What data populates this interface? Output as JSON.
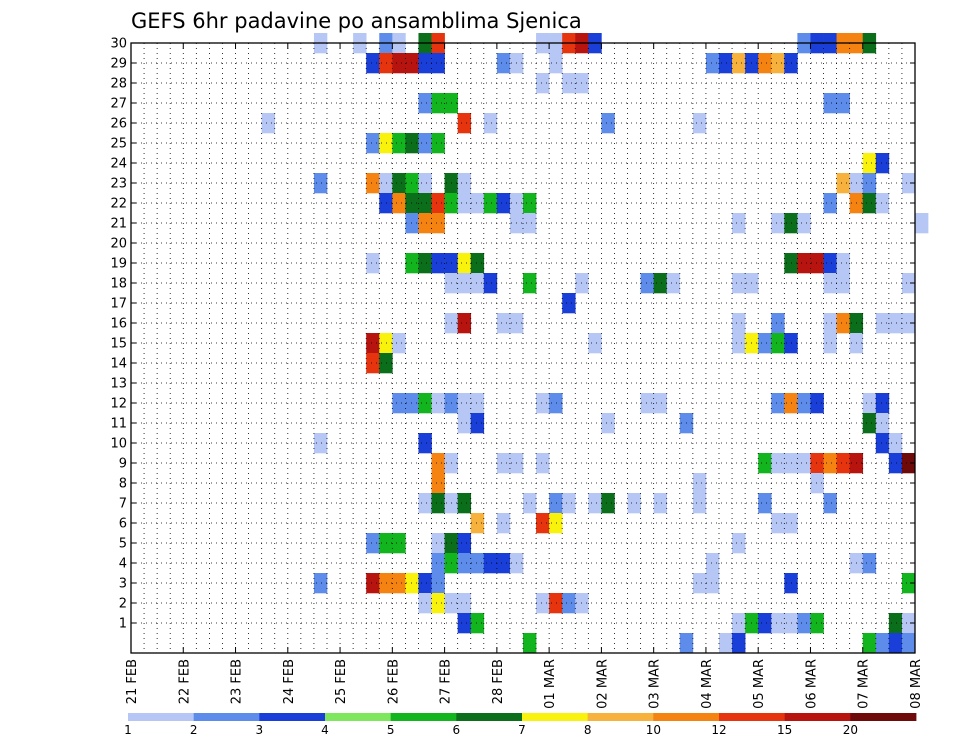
{
  "chart_data": {
    "type": "heatmap",
    "title": "GEFS 6hr padavine po ansamblima Sjenica",
    "xlabel": "",
    "ylabel": "",
    "x_ticks": [
      "21 FEB",
      "22 FEB",
      "23 FEB",
      "24 FEB",
      "25 FEB",
      "26 FEB",
      "27 FEB",
      "28 FEB",
      "01 MAR",
      "02 MAR",
      "03 MAR",
      "04 MAR",
      "05 MAR",
      "06 MAR",
      "07 MAR",
      "08 MAR"
    ],
    "y_ticks": [
      "1",
      "2",
      "3",
      "4",
      "5",
      "6",
      "7",
      "8",
      "9",
      "10",
      "11",
      "12",
      "13",
      "14",
      "15",
      "16",
      "17",
      "18",
      "19",
      "20",
      "21",
      "22",
      "23",
      "24",
      "25",
      "26",
      "27",
      "28",
      "29",
      "30"
    ],
    "steps_per_day": 4,
    "num_steps": 60,
    "legend_levels": [
      "1",
      "2",
      "3",
      "4",
      "5",
      "6",
      "7",
      "8",
      "10",
      "12",
      "15",
      "20"
    ],
    "palette": [
      "#b6c7f5",
      "#5e8ceb",
      "#1a3fd9",
      "#7ee75e",
      "#12b51e",
      "#0a6e1a",
      "#f8f20c",
      "#f6b23c",
      "#f48312",
      "#e6340e",
      "#b8140f",
      "#6e0a0a"
    ],
    "cells": [
      [
        30,
        14,
        0
      ],
      [
        30,
        17,
        0
      ],
      [
        30,
        19,
        1
      ],
      [
        30,
        20,
        0
      ],
      [
        30,
        22,
        5
      ],
      [
        30,
        23,
        9
      ],
      [
        30,
        31,
        0
      ],
      [
        30,
        32,
        0
      ],
      [
        30,
        33,
        9
      ],
      [
        30,
        34,
        10
      ],
      [
        30,
        35,
        2
      ],
      [
        30,
        51,
        1
      ],
      [
        30,
        52,
        2
      ],
      [
        30,
        53,
        2
      ],
      [
        30,
        54,
        8
      ],
      [
        30,
        55,
        8
      ],
      [
        30,
        56,
        5
      ],
      [
        29,
        18,
        2
      ],
      [
        29,
        19,
        9
      ],
      [
        29,
        20,
        10
      ],
      [
        29,
        21,
        10
      ],
      [
        29,
        22,
        2
      ],
      [
        29,
        23,
        2
      ],
      [
        29,
        28,
        1
      ],
      [
        29,
        29,
        0
      ],
      [
        29,
        32,
        0
      ],
      [
        29,
        44,
        1
      ],
      [
        29,
        45,
        2
      ],
      [
        29,
        46,
        7
      ],
      [
        29,
        47,
        2
      ],
      [
        29,
        48,
        8
      ],
      [
        29,
        49,
        7
      ],
      [
        29,
        50,
        2
      ],
      [
        28,
        31,
        0
      ],
      [
        28,
        33,
        0
      ],
      [
        28,
        34,
        0
      ],
      [
        27,
        22,
        1
      ],
      [
        27,
        23,
        4
      ],
      [
        27,
        24,
        4
      ],
      [
        27,
        53,
        1
      ],
      [
        27,
        54,
        1
      ],
      [
        26,
        10,
        0
      ],
      [
        26,
        25,
        9
      ],
      [
        26,
        27,
        0
      ],
      [
        26,
        36,
        1
      ],
      [
        26,
        43,
        0
      ],
      [
        25,
        18,
        1
      ],
      [
        25,
        19,
        6
      ],
      [
        25,
        20,
        4
      ],
      [
        25,
        21,
        5
      ],
      [
        25,
        22,
        1
      ],
      [
        25,
        23,
        4
      ],
      [
        24,
        56,
        6
      ],
      [
        24,
        57,
        2
      ],
      [
        23,
        14,
        1
      ],
      [
        23,
        18,
        8
      ],
      [
        23,
        19,
        0
      ],
      [
        23,
        20,
        5
      ],
      [
        23,
        21,
        4
      ],
      [
        23,
        22,
        0
      ],
      [
        23,
        24,
        5
      ],
      [
        23,
        25,
        0
      ],
      [
        23,
        54,
        7
      ],
      [
        23,
        55,
        0
      ],
      [
        23,
        56,
        1
      ],
      [
        23,
        59,
        0
      ],
      [
        22,
        19,
        2
      ],
      [
        22,
        20,
        8
      ],
      [
        22,
        21,
        5
      ],
      [
        22,
        22,
        5
      ],
      [
        22,
        23,
        9
      ],
      [
        22,
        24,
        4
      ],
      [
        22,
        25,
        0
      ],
      [
        22,
        26,
        0
      ],
      [
        22,
        27,
        4
      ],
      [
        22,
        28,
        2
      ],
      [
        22,
        29,
        0
      ],
      [
        22,
        30,
        4
      ],
      [
        22,
        53,
        1
      ],
      [
        22,
        55,
        8
      ],
      [
        22,
        56,
        5
      ],
      [
        22,
        57,
        0
      ],
      [
        21,
        21,
        1
      ],
      [
        21,
        22,
        8
      ],
      [
        21,
        23,
        8
      ],
      [
        21,
        29,
        0
      ],
      [
        21,
        30,
        0
      ],
      [
        21,
        46,
        0
      ],
      [
        21,
        49,
        0
      ],
      [
        21,
        50,
        5
      ],
      [
        21,
        51,
        0
      ],
      [
        21,
        60,
        0
      ],
      [
        19,
        18,
        0
      ],
      [
        19,
        21,
        4
      ],
      [
        19,
        22,
        5
      ],
      [
        19,
        23,
        2
      ],
      [
        19,
        24,
        2
      ],
      [
        19,
        25,
        6
      ],
      [
        19,
        26,
        5
      ],
      [
        19,
        50,
        5
      ],
      [
        19,
        51,
        10
      ],
      [
        19,
        52,
        10
      ],
      [
        19,
        53,
        2
      ],
      [
        19,
        54,
        0
      ],
      [
        18,
        24,
        0
      ],
      [
        18,
        25,
        0
      ],
      [
        18,
        26,
        0
      ],
      [
        18,
        27,
        2
      ],
      [
        18,
        30,
        4
      ],
      [
        18,
        34,
        0
      ],
      [
        18,
        39,
        1
      ],
      [
        18,
        40,
        5
      ],
      [
        18,
        41,
        0
      ],
      [
        18,
        46,
        0
      ],
      [
        18,
        47,
        0
      ],
      [
        18,
        53,
        0
      ],
      [
        18,
        54,
        0
      ],
      [
        18,
        59,
        0
      ],
      [
        17,
        33,
        2
      ],
      [
        16,
        24,
        0
      ],
      [
        16,
        25,
        10
      ],
      [
        16,
        28,
        0
      ],
      [
        16,
        29,
        0
      ],
      [
        16,
        46,
        0
      ],
      [
        16,
        49,
        1
      ],
      [
        16,
        53,
        0
      ],
      [
        16,
        54,
        8
      ],
      [
        16,
        55,
        5
      ],
      [
        16,
        57,
        0
      ],
      [
        16,
        58,
        0
      ],
      [
        16,
        59,
        0
      ],
      [
        15,
        18,
        10
      ],
      [
        15,
        19,
        6
      ],
      [
        15,
        20,
        0
      ],
      [
        15,
        35,
        0
      ],
      [
        15,
        46,
        0
      ],
      [
        15,
        47,
        6
      ],
      [
        15,
        48,
        1
      ],
      [
        15,
        49,
        4
      ],
      [
        15,
        50,
        2
      ],
      [
        15,
        53,
        0
      ],
      [
        15,
        55,
        0
      ],
      [
        14,
        18,
        9
      ],
      [
        14,
        19,
        5
      ],
      [
        12,
        20,
        1
      ],
      [
        12,
        21,
        1
      ],
      [
        12,
        22,
        4
      ],
      [
        12,
        23,
        0
      ],
      [
        12,
        24,
        1
      ],
      [
        12,
        25,
        0
      ],
      [
        12,
        26,
        0
      ],
      [
        12,
        31,
        0
      ],
      [
        12,
        32,
        1
      ],
      [
        12,
        39,
        0
      ],
      [
        12,
        40,
        0
      ],
      [
        12,
        49,
        1
      ],
      [
        12,
        50,
        8
      ],
      [
        12,
        51,
        1
      ],
      [
        12,
        52,
        2
      ],
      [
        12,
        56,
        0
      ],
      [
        12,
        57,
        2
      ],
      [
        11,
        25,
        0
      ],
      [
        11,
        26,
        2
      ],
      [
        11,
        36,
        0
      ],
      [
        11,
        42,
        1
      ],
      [
        11,
        56,
        5
      ],
      [
        11,
        57,
        0
      ],
      [
        10,
        14,
        0
      ],
      [
        10,
        22,
        2
      ],
      [
        10,
        57,
        2
      ],
      [
        10,
        58,
        0
      ],
      [
        9,
        23,
        8
      ],
      [
        9,
        24,
        0
      ],
      [
        9,
        28,
        0
      ],
      [
        9,
        29,
        0
      ],
      [
        9,
        31,
        0
      ],
      [
        9,
        48,
        4
      ],
      [
        9,
        49,
        0
      ],
      [
        9,
        50,
        0
      ],
      [
        9,
        51,
        0
      ],
      [
        9,
        52,
        9
      ],
      [
        9,
        53,
        8
      ],
      [
        9,
        54,
        9
      ],
      [
        9,
        55,
        10
      ],
      [
        9,
        58,
        2
      ],
      [
        9,
        59,
        11
      ],
      [
        8,
        23,
        8
      ],
      [
        8,
        43,
        0
      ],
      [
        8,
        52,
        0
      ],
      [
        7,
        22,
        0
      ],
      [
        7,
        23,
        5
      ],
      [
        7,
        24,
        0
      ],
      [
        7,
        25,
        5
      ],
      [
        7,
        30,
        0
      ],
      [
        7,
        32,
        1
      ],
      [
        7,
        33,
        0
      ],
      [
        7,
        35,
        0
      ],
      [
        7,
        36,
        5
      ],
      [
        7,
        38,
        0
      ],
      [
        7,
        40,
        0
      ],
      [
        7,
        43,
        0
      ],
      [
        7,
        48,
        1
      ],
      [
        7,
        53,
        1
      ],
      [
        6,
        26,
        7
      ],
      [
        6,
        28,
        0
      ],
      [
        6,
        31,
        9
      ],
      [
        6,
        32,
        6
      ],
      [
        6,
        49,
        0
      ],
      [
        6,
        50,
        0
      ],
      [
        5,
        18,
        1
      ],
      [
        5,
        19,
        4
      ],
      [
        5,
        20,
        4
      ],
      [
        5,
        23,
        0
      ],
      [
        5,
        24,
        5
      ],
      [
        5,
        25,
        2
      ],
      [
        5,
        46,
        0
      ],
      [
        4,
        23,
        1
      ],
      [
        4,
        24,
        4
      ],
      [
        4,
        25,
        1
      ],
      [
        4,
        26,
        1
      ],
      [
        4,
        27,
        2
      ],
      [
        4,
        28,
        2
      ],
      [
        4,
        29,
        0
      ],
      [
        4,
        44,
        0
      ],
      [
        4,
        55,
        0
      ],
      [
        4,
        56,
        1
      ],
      [
        3,
        14,
        1
      ],
      [
        3,
        18,
        10
      ],
      [
        3,
        19,
        8
      ],
      [
        3,
        20,
        8
      ],
      [
        3,
        21,
        6
      ],
      [
        3,
        22,
        2
      ],
      [
        3,
        23,
        1
      ],
      [
        3,
        43,
        0
      ],
      [
        3,
        44,
        0
      ],
      [
        3,
        50,
        2
      ],
      [
        3,
        59,
        4
      ],
      [
        2,
        22,
        0
      ],
      [
        2,
        23,
        6
      ],
      [
        2,
        24,
        0
      ],
      [
        2,
        25,
        0
      ],
      [
        2,
        31,
        0
      ],
      [
        2,
        32,
        9
      ],
      [
        2,
        33,
        1
      ],
      [
        2,
        34,
        0
      ],
      [
        1,
        25,
        2
      ],
      [
        1,
        26,
        4
      ],
      [
        1,
        46,
        0
      ],
      [
        1,
        47,
        4
      ],
      [
        1,
        48,
        2
      ],
      [
        1,
        49,
        0
      ],
      [
        1,
        50,
        0
      ],
      [
        1,
        51,
        1
      ],
      [
        1,
        52,
        4
      ],
      [
        1,
        58,
        5
      ],
      [
        1,
        59,
        0
      ],
      [
        0,
        30,
        4
      ],
      [
        0,
        42,
        1
      ],
      [
        0,
        45,
        0
      ],
      [
        0,
        46,
        2
      ],
      [
        0,
        56,
        4
      ],
      [
        0,
        57,
        1
      ],
      [
        0,
        58,
        2
      ],
      [
        0,
        59,
        1
      ]
    ]
  }
}
